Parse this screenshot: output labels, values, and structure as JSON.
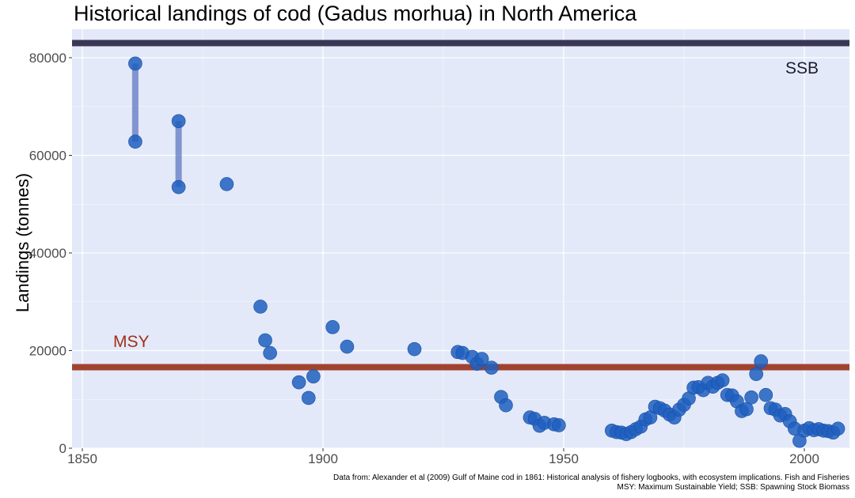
{
  "chart_data": {
    "type": "scatter",
    "title": "Historical landings of cod (Gadus morhua) in North America",
    "xlabel": "",
    "ylabel": "Landings (tonnes)",
    "xlim": [
      1848,
      2010
    ],
    "ylim": [
      0,
      85000
    ],
    "x_ticks": [
      1850,
      1900,
      1950,
      2000
    ],
    "x_tick_labels": [
      "1850",
      "1900",
      "1950",
      "2000"
    ],
    "y_ticks": [
      0,
      20000,
      40000,
      60000,
      80000
    ],
    "y_tick_labels": [
      "0",
      "20000",
      "40000",
      "60000",
      "80000"
    ],
    "grid": true,
    "reference_lines": [
      {
        "label": "SSB",
        "y": 83000,
        "color": "#3a3656"
      },
      {
        "label": "MSY",
        "y": 16600,
        "color": "#a1422f"
      }
    ],
    "ranges": [
      {
        "x": 1861,
        "low": 62800,
        "high": 78800
      },
      {
        "x": 1870,
        "low": 53500,
        "high": 67000
      }
    ],
    "points": [
      {
        "x": 1861,
        "y": 78800
      },
      {
        "x": 1861,
        "y": 62800
      },
      {
        "x": 1870,
        "y": 67000
      },
      {
        "x": 1870,
        "y": 53500
      },
      {
        "x": 1880,
        "y": 54100
      },
      {
        "x": 1887,
        "y": 29000
      },
      {
        "x": 1888,
        "y": 22100
      },
      {
        "x": 1889,
        "y": 19500
      },
      {
        "x": 1895,
        "y": 13500
      },
      {
        "x": 1897,
        "y": 10300
      },
      {
        "x": 1898,
        "y": 14700
      },
      {
        "x": 1902,
        "y": 24800
      },
      {
        "x": 1905,
        "y": 20800
      },
      {
        "x": 1919,
        "y": 20300
      },
      {
        "x": 1928,
        "y": 19700
      },
      {
        "x": 1929,
        "y": 19500
      },
      {
        "x": 1931,
        "y": 18700
      },
      {
        "x": 1932,
        "y": 17300
      },
      {
        "x": 1933,
        "y": 18300
      },
      {
        "x": 1935,
        "y": 16500
      },
      {
        "x": 1937,
        "y": 10500
      },
      {
        "x": 1938,
        "y": 8800
      },
      {
        "x": 1943,
        "y": 6300
      },
      {
        "x": 1944,
        "y": 6000
      },
      {
        "x": 1945,
        "y": 4600
      },
      {
        "x": 1946,
        "y": 5200
      },
      {
        "x": 1948,
        "y": 4900
      },
      {
        "x": 1949,
        "y": 4700
      },
      {
        "x": 1960,
        "y": 3600
      },
      {
        "x": 1961,
        "y": 3300
      },
      {
        "x": 1962,
        "y": 3200
      },
      {
        "x": 1963,
        "y": 2900
      },
      {
        "x": 1964,
        "y": 3300
      },
      {
        "x": 1965,
        "y": 3900
      },
      {
        "x": 1966,
        "y": 4400
      },
      {
        "x": 1967,
        "y": 5900
      },
      {
        "x": 1968,
        "y": 6300
      },
      {
        "x": 1969,
        "y": 8500
      },
      {
        "x": 1970,
        "y": 8200
      },
      {
        "x": 1971,
        "y": 7700
      },
      {
        "x": 1972,
        "y": 6900
      },
      {
        "x": 1973,
        "y": 6300
      },
      {
        "x": 1974,
        "y": 7900
      },
      {
        "x": 1975,
        "y": 8900
      },
      {
        "x": 1976,
        "y": 10200
      },
      {
        "x": 1977,
        "y": 12400
      },
      {
        "x": 1978,
        "y": 12500
      },
      {
        "x": 1979,
        "y": 11900
      },
      {
        "x": 1980,
        "y": 13400
      },
      {
        "x": 1981,
        "y": 12600
      },
      {
        "x": 1982,
        "y": 13400
      },
      {
        "x": 1983,
        "y": 13900
      },
      {
        "x": 1984,
        "y": 10900
      },
      {
        "x": 1985,
        "y": 10800
      },
      {
        "x": 1986,
        "y": 9600
      },
      {
        "x": 1987,
        "y": 7600
      },
      {
        "x": 1988,
        "y": 8000
      },
      {
        "x": 1989,
        "y": 10400
      },
      {
        "x": 1990,
        "y": 15200
      },
      {
        "x": 1991,
        "y": 17800
      },
      {
        "x": 1992,
        "y": 10900
      },
      {
        "x": 1993,
        "y": 8200
      },
      {
        "x": 1994,
        "y": 7900
      },
      {
        "x": 1995,
        "y": 6700
      },
      {
        "x": 1996,
        "y": 7000
      },
      {
        "x": 1997,
        "y": 5500
      },
      {
        "x": 1998,
        "y": 4000
      },
      {
        "x": 1999,
        "y": 1500
      },
      {
        "x": 2000,
        "y": 3600
      },
      {
        "x": 2001,
        "y": 4100
      },
      {
        "x": 2002,
        "y": 3700
      },
      {
        "x": 2003,
        "y": 3900
      },
      {
        "x": 2004,
        "y": 3600
      },
      {
        "x": 2005,
        "y": 3500
      },
      {
        "x": 2006,
        "y": 3200
      },
      {
        "x": 2007,
        "y": 4000
      }
    ],
    "point_color": "#1f5fbf",
    "range_color": "#6f86c9",
    "panel_bg": "#e3e9f8",
    "grid_color": "#ffffff",
    "msy_text_color": "#a1301d",
    "ssb_text_color": "#1b1b2f"
  },
  "caption": {
    "line1": "Data from: Alexander et al (2009) Gulf of Maine cod in 1861: Historical analysis of fishery logbooks, with ecosystem implications. Fish and Fisheries",
    "line2": "MSY: Maximum Sustainable Yield; SSB: Spawning Stock Biomass"
  }
}
